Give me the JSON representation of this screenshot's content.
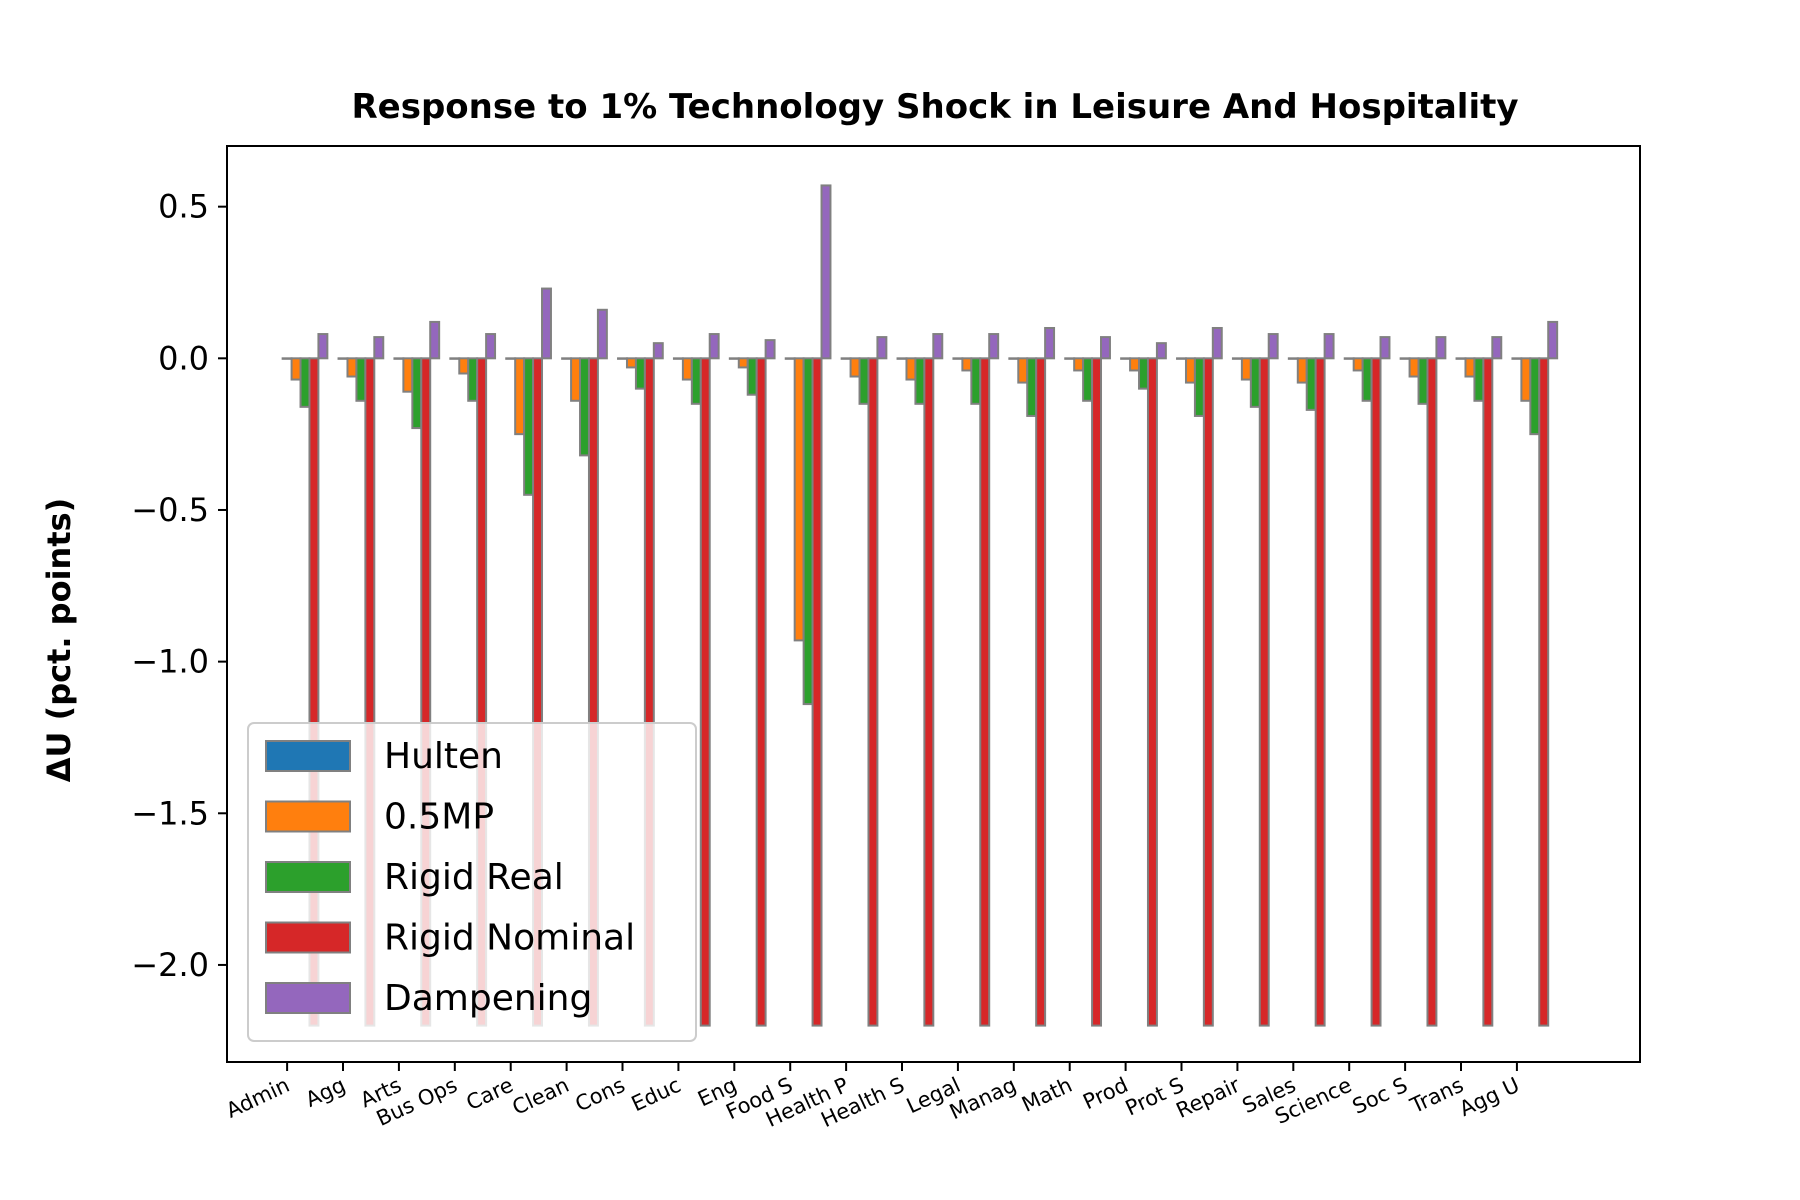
{
  "chart_data": {
    "type": "bar",
    "title": "Response to 1% Technology Shock in Leisure And Hospitality",
    "xlabel": "",
    "ylabel": "ΔU  (pct. points)",
    "ylim": [
      -2.32,
      0.7
    ],
    "yticks": [
      0.5,
      0.0,
      -0.5,
      -1.0,
      -1.5,
      -2.0
    ],
    "ytick_labels": [
      "0.5",
      "0.0",
      "−0.5",
      "−1.0",
      "−1.5",
      "−2.0"
    ],
    "grid": false,
    "legend_position": "lower-left",
    "categories": [
      "Admin",
      "Agg",
      "Arts",
      "Bus Ops",
      "Care",
      "Clean",
      "Cons",
      "Educ",
      "Eng",
      "Food S",
      "Health P",
      "Health S",
      "Legal",
      "Manag",
      "Math",
      "Prod",
      "Prot S",
      "Repair",
      "Sales",
      "Science",
      "Soc S",
      "Trans",
      "Agg U"
    ],
    "series": [
      {
        "name": "Hulten",
        "color": "#1f77b4",
        "values": [
          0,
          0,
          0,
          0,
          0,
          0,
          0,
          0,
          0,
          0,
          0,
          0,
          0,
          0,
          0,
          0,
          0,
          0,
          0,
          0,
          0,
          0,
          0
        ]
      },
      {
        "name": "0.5MP",
        "color": "#ff7f0e",
        "values": [
          -0.07,
          -0.06,
          -0.11,
          -0.05,
          -0.25,
          -0.14,
          -0.03,
          -0.07,
          -0.03,
          -0.93,
          -0.06,
          -0.07,
          -0.04,
          -0.08,
          -0.04,
          -0.04,
          -0.08,
          -0.07,
          -0.08,
          -0.04,
          -0.06,
          -0.06,
          -0.14
        ]
      },
      {
        "name": "Rigid Real",
        "color": "#2ca02c",
        "values": [
          -0.16,
          -0.14,
          -0.23,
          -0.14,
          -0.45,
          -0.32,
          -0.1,
          -0.15,
          -0.12,
          -1.14,
          -0.15,
          -0.15,
          -0.15,
          -0.19,
          -0.14,
          -0.1,
          -0.19,
          -0.16,
          -0.17,
          -0.14,
          -0.15,
          -0.14,
          -0.25
        ]
      },
      {
        "name": "Rigid Nominal",
        "color": "#d62728",
        "values": [
          -2.2,
          -2.2,
          -2.2,
          -2.2,
          -2.2,
          -2.2,
          -2.2,
          -2.2,
          -2.2,
          -2.2,
          -2.2,
          -2.2,
          -2.2,
          -2.2,
          -2.2,
          -2.2,
          -2.2,
          -2.2,
          -2.2,
          -2.2,
          -2.2,
          -2.2,
          -2.2
        ]
      },
      {
        "name": "Dampening",
        "color": "#9467bd",
        "values": [
          0.08,
          0.07,
          0.12,
          0.08,
          0.23,
          0.16,
          0.05,
          0.08,
          0.06,
          0.57,
          0.07,
          0.08,
          0.08,
          0.1,
          0.07,
          0.05,
          0.1,
          0.08,
          0.08,
          0.07,
          0.07,
          0.07,
          0.12
        ]
      }
    ]
  }
}
